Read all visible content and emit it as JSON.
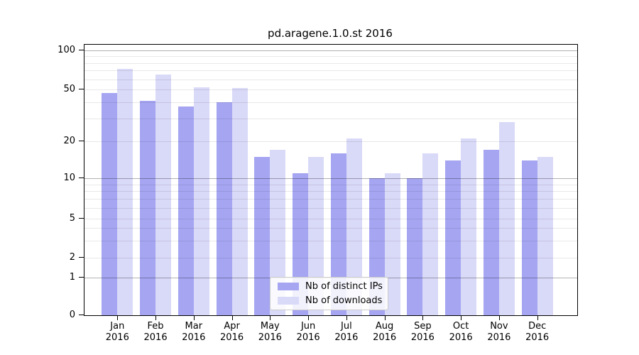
{
  "title": "pd.aragene.1.0.st 2016",
  "chart_data": {
    "type": "bar",
    "title": "pd.aragene.1.0.st 2016",
    "categories": [
      "Jan",
      "Feb",
      "Mar",
      "Apr",
      "May",
      "Jun",
      "Jul",
      "Aug",
      "Sep",
      "Oct",
      "Nov",
      "Dec"
    ],
    "x_year_label": "2016",
    "series": [
      {
        "name": "Nb of distinct IPs",
        "color": "#a5a5f2",
        "values": [
          47,
          41,
          37,
          40,
          15,
          11,
          16,
          10,
          10,
          14,
          17,
          14
        ]
      },
      {
        "name": "Nb of downloads",
        "color": "#d9d9f8",
        "values": [
          72,
          65,
          52,
          51,
          17,
          15,
          21,
          11,
          16,
          21,
          28,
          15
        ]
      }
    ],
    "xlabel": "",
    "ylabel": "",
    "yscale": "symlog",
    "ylim": [
      0,
      110
    ],
    "y_tick_labels": [
      "100",
      "50",
      "20",
      "10",
      "5",
      "2",
      "1",
      "0"
    ],
    "y_tick_values": [
      100,
      50,
      20,
      10,
      5,
      2,
      1,
      0
    ],
    "grid": "horizontal, minor log gridlines",
    "legend_position": "lower center"
  },
  "legend": {
    "items": [
      {
        "label": "Nb of distinct IPs"
      },
      {
        "label": "Nb of downloads"
      }
    ]
  }
}
